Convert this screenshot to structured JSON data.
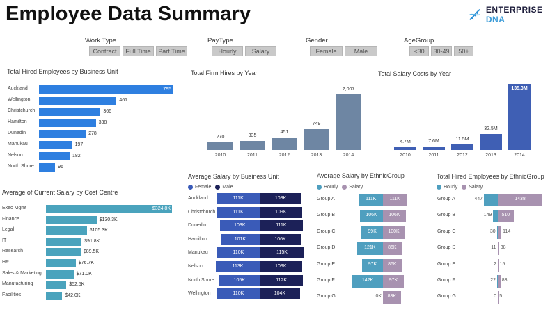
{
  "title": "Employee Data Summary",
  "logo": {
    "text_a": "ENTERPRISE",
    "text_b": "DNA",
    "icon": "dna-helix-icon"
  },
  "colors": {
    "blue": "#2e7fe0",
    "teal": "#4aa3bd",
    "slate": "#6e86a3",
    "navy": "#3f5fb4",
    "female": "#3a5bb8",
    "male": "#1c2158",
    "hourly": "#4f9fbf",
    "salary": "#a892b0"
  },
  "slicers": {
    "work_type": {
      "label": "Work Type",
      "options": [
        "Contract",
        "Full Time",
        "Part Time"
      ]
    },
    "pay_type": {
      "label": "PayType",
      "options": [
        "Hourly",
        "Salary"
      ]
    },
    "gender": {
      "label": "Gender",
      "options": [
        "Female",
        "Male"
      ]
    },
    "age_group": {
      "label": "AgeGroup",
      "options": [
        "<30",
        "30-49",
        "50+"
      ]
    }
  },
  "chart_data": [
    {
      "id": "hired_bu",
      "type": "bar",
      "orientation": "horizontal",
      "title": "Total Hired Employees by Business Unit",
      "categories": [
        "Auckland",
        "Wellington",
        "Christchurch",
        "Hamilton",
        "Dunedin",
        "Manukau",
        "Nelson",
        "North Shore"
      ],
      "values": [
        795,
        461,
        366,
        338,
        278,
        197,
        182,
        96
      ],
      "value_labels": [
        "795",
        "461",
        "366",
        "338",
        "278",
        "197",
        "182",
        "96"
      ]
    },
    {
      "id": "hires_year",
      "type": "bar",
      "title": "Total Firm Hires by Year",
      "categories": [
        "2010",
        "2011",
        "2012",
        "2013",
        "2014"
      ],
      "values": [
        270,
        335,
        451,
        749,
        2007
      ],
      "value_labels": [
        "270",
        "335",
        "451",
        "749",
        "2,007"
      ]
    },
    {
      "id": "salary_year",
      "type": "bar",
      "title": "Total Salary Costs by Year",
      "categories": [
        "2010",
        "2011",
        "2012",
        "2013",
        "2014"
      ],
      "values": [
        4.7,
        7.6,
        11.5,
        32.5,
        135.3
      ],
      "value_labels": [
        "4.7M",
        "7.6M",
        "11.5M",
        "32.5M",
        "135.3M"
      ]
    },
    {
      "id": "salary_cc",
      "type": "bar",
      "orientation": "horizontal",
      "title": "Average of Current Salary by Cost Centre",
      "categories": [
        "Exec Mgmt",
        "Finance",
        "Legal",
        "IT",
        "Research",
        "HR",
        "Sales & Marketing",
        "Manufacturing",
        "Facilities"
      ],
      "values": [
        324.8,
        130.3,
        105.3,
        91.8,
        89.5,
        76.7,
        71.0,
        52.5,
        42.0
      ],
      "value_labels": [
        "$324.8K",
        "$130.3K",
        "$105.3K",
        "$91.8K",
        "$89.5K",
        "$76.7K",
        "$71.0K",
        "$52.5K",
        "$42.0K"
      ]
    },
    {
      "id": "salary_bu_gender",
      "type": "bar",
      "orientation": "diverging",
      "title": "Average Salary by Business Unit",
      "categories": [
        "Auckland",
        "Christchurch",
        "Dunedin",
        "Hamilton",
        "Manukau",
        "Nelson",
        "North Shore",
        "Wellington"
      ],
      "series": [
        {
          "name": "Female",
          "values": [
            111,
            111,
            103,
            101,
            110,
            113,
            105,
            110
          ],
          "value_labels": [
            "111K",
            "111K",
            "103K",
            "101K",
            "110K",
            "113K",
            "105K",
            "110K"
          ]
        },
        {
          "name": "Male",
          "values": [
            108,
            109,
            111,
            106,
            115,
            109,
            112,
            104
          ],
          "value_labels": [
            "108K",
            "109K",
            "111K",
            "106K",
            "115K",
            "109K",
            "112K",
            "104K"
          ]
        }
      ]
    },
    {
      "id": "salary_ethnic",
      "type": "bar",
      "orientation": "diverging",
      "title": "Average Salary by EthnicGroup",
      "categories": [
        "Group A",
        "Group B",
        "Group C",
        "Group D",
        "Group E",
        "Group F",
        "Group G"
      ],
      "series": [
        {
          "name": "Hourly",
          "values": [
            111,
            106,
            99,
            121,
            97,
            142,
            0
          ],
          "value_labels": [
            "111K",
            "106K",
            "99K",
            "121K",
            "97K",
            "142K",
            "0K"
          ]
        },
        {
          "name": "Salary",
          "values": [
            111,
            106,
            100,
            86,
            86,
            97,
            83
          ],
          "value_labels": [
            "111K",
            "106K",
            "100K",
            "86K",
            "86K",
            "97K",
            "83K"
          ]
        }
      ]
    },
    {
      "id": "hired_ethnic",
      "type": "bar",
      "orientation": "diverging",
      "title": "Total Hired Employees by EthnicGroup",
      "categories": [
        "Group A",
        "Group B",
        "Group C",
        "Group D",
        "Group E",
        "Group F",
        "Group G"
      ],
      "series": [
        {
          "name": "Hourly",
          "values": [
            447,
            149,
            30,
            11,
            2,
            22,
            0
          ],
          "value_labels": [
            "447",
            "149",
            "30",
            "11",
            "2",
            "22",
            "0"
          ]
        },
        {
          "name": "Salary",
          "values": [
            1438,
            510,
            114,
            38,
            15,
            83,
            5
          ],
          "value_labels": [
            "1438",
            "510",
            "114",
            "38",
            "15",
            "83",
            "5"
          ]
        }
      ]
    }
  ]
}
